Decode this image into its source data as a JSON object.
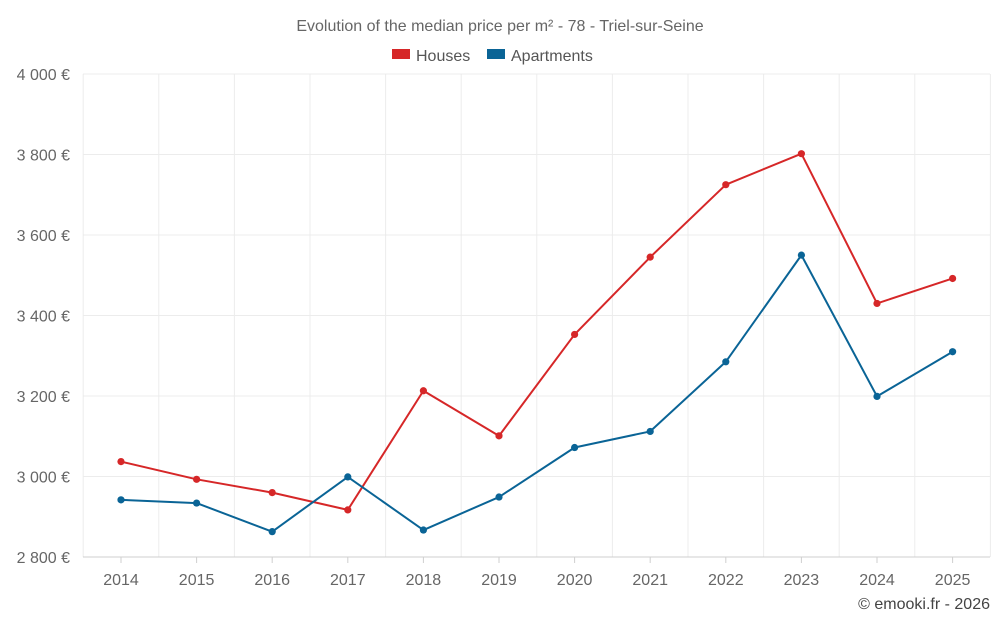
{
  "chart_data": {
    "type": "line",
    "title": "Evolution of the median price per m² - 78 - Triel-sur-Seine",
    "categories": [
      "2014",
      "2015",
      "2016",
      "2017",
      "2018",
      "2019",
      "2020",
      "2021",
      "2022",
      "2023",
      "2024",
      "2025"
    ],
    "series": [
      {
        "name": "Houses",
        "color": "#d62728",
        "values": [
          3037,
          2993,
          2960,
          2917,
          3213,
          3101,
          3353,
          3545,
          3725,
          3802,
          3430,
          3492
        ]
      },
      {
        "name": "Apartments",
        "color": "#0a6496",
        "values": [
          2942,
          2934,
          2863,
          2999,
          2867,
          2949,
          3072,
          3112,
          3285,
          3550,
          3199,
          3310
        ]
      }
    ],
    "y_ticks": [
      2800,
      3000,
      3200,
      3400,
      3600,
      3800,
      4000
    ],
    "y_tick_labels": [
      "2 800 €",
      "3 000 €",
      "3 200 €",
      "3 400 €",
      "3 600 €",
      "3 800 €",
      "4 000 €"
    ],
    "ylim": [
      2800,
      4000
    ],
    "xlabel": "",
    "ylabel": "",
    "legend_position": "top-center",
    "grid": true
  },
  "credit": "© emooki.fr - 2026"
}
